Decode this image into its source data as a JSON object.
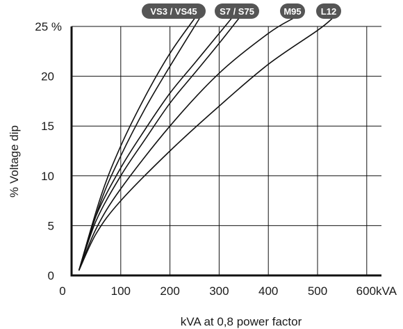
{
  "chart_data": {
    "type": "line",
    "title": "",
    "xlabel": "kVA at 0,8 power factor",
    "ylabel": "% Voltage dip",
    "xlim": [
      0,
      600
    ],
    "ylim": [
      0,
      25
    ],
    "x_ticks": [
      "0",
      "100",
      "200",
      "300",
      "400",
      "500",
      "600kVA"
    ],
    "y_ticks": [
      "0",
      "5",
      "10",
      "15",
      "20",
      "25 %"
    ],
    "grid": true,
    "series": [
      {
        "name": "VS3 / VS45",
        "points": [
          [
            15,
            0.5
          ],
          [
            60,
            8
          ],
          [
            100,
            13
          ],
          [
            150,
            18
          ],
          [
            200,
            22.3
          ],
          [
            250,
            25.8
          ]
        ]
      },
      {
        "name": "VS3 / VS45",
        "points": [
          [
            15,
            0.5
          ],
          [
            60,
            7.5
          ],
          [
            100,
            12
          ],
          [
            150,
            16.8
          ],
          [
            200,
            21
          ],
          [
            260,
            25.8
          ]
        ]
      },
      {
        "name": "S7 / S75",
        "points": [
          [
            15,
            0.5
          ],
          [
            50,
            6
          ],
          [
            100,
            10.8
          ],
          [
            150,
            14.7
          ],
          [
            200,
            18.3
          ],
          [
            250,
            21.3
          ],
          [
            300,
            24.3
          ],
          [
            325,
            25.8
          ]
        ]
      },
      {
        "name": "S7 / S75",
        "points": [
          [
            15,
            0.5
          ],
          [
            50,
            5.5
          ],
          [
            100,
            10
          ],
          [
            150,
            13.7
          ],
          [
            200,
            17.3
          ],
          [
            250,
            20.3
          ],
          [
            300,
            23.3
          ],
          [
            340,
            25.8
          ]
        ]
      },
      {
        "name": "M95",
        "points": [
          [
            15,
            0.5
          ],
          [
            50,
            4.7
          ],
          [
            100,
            8.7
          ],
          [
            200,
            15
          ],
          [
            300,
            20.3
          ],
          [
            400,
            24.3
          ],
          [
            450,
            25.8
          ]
        ]
      },
      {
        "name": "L12",
        "points": [
          [
            15,
            0.5
          ],
          [
            50,
            4.2
          ],
          [
            100,
            7.5
          ],
          [
            200,
            12.5
          ],
          [
            300,
            17
          ],
          [
            400,
            21.2
          ],
          [
            500,
            24.6
          ],
          [
            530,
            25.8
          ]
        ]
      }
    ],
    "legend_position": "top labels at curve ends",
    "colors": {
      "line": "#111111",
      "label_bg": "#555555",
      "label_text": "#ffffff"
    }
  }
}
